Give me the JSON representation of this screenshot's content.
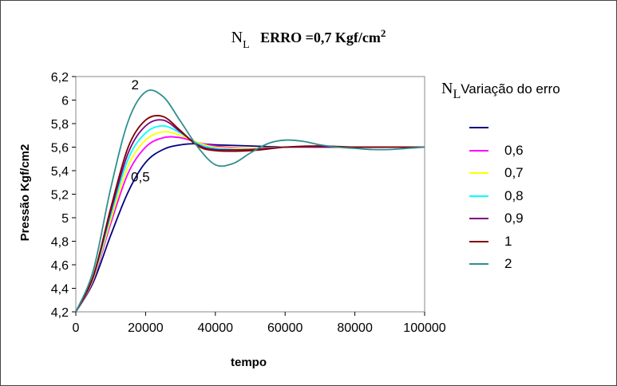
{
  "title": {
    "n": "N",
    "sub": "L",
    "text": "ERRO =0,7  Kgf/cm",
    "sup": "2"
  },
  "legend_title": {
    "n": "N",
    "sub": "L",
    "text": "Variação do erro"
  },
  "chart_data": {
    "type": "line",
    "xlabel": "tempo",
    "ylabel": "Pressão Kgf/cm2",
    "xlim": [
      0,
      100000
    ],
    "ylim": [
      4.2,
      6.2
    ],
    "xticks": [
      "0",
      "20000",
      "40000",
      "60000",
      "80000",
      "100000"
    ],
    "yticks": [
      "4,2",
      "4,4",
      "4,6",
      "4,8",
      "5",
      "5,2",
      "5,4",
      "5,6",
      "5,8",
      "6",
      "6,2"
    ],
    "grid": false,
    "legend_position": "right",
    "annotations": [
      {
        "text": "2",
        "x": 17000,
        "y": 6.09
      },
      {
        "text": "0,5",
        "x": 18500,
        "y": 5.31
      }
    ],
    "series": [
      {
        "name": "",
        "color": "#000080",
        "x": [
          0,
          5000,
          10000,
          15000,
          20000,
          25000,
          30000,
          35000,
          40000,
          50000,
          60000,
          70000,
          80000,
          90000,
          100000
        ],
        "y": [
          4.2,
          4.45,
          4.85,
          5.22,
          5.47,
          5.58,
          5.62,
          5.63,
          5.62,
          5.61,
          5.6,
          5.6,
          5.6,
          5.6,
          5.6
        ]
      },
      {
        "name": "0,6",
        "color": "#ff00ff",
        "x": [
          0,
          5000,
          10000,
          15000,
          20000,
          25000,
          30000,
          35000,
          40000,
          50000,
          60000,
          70000,
          80000,
          90000,
          100000
        ],
        "y": [
          4.2,
          4.47,
          4.95,
          5.38,
          5.6,
          5.68,
          5.68,
          5.64,
          5.61,
          5.59,
          5.6,
          5.6,
          5.6,
          5.6,
          5.6
        ]
      },
      {
        "name": "0,7",
        "color": "#ffff00",
        "x": [
          0,
          5000,
          10000,
          15000,
          20000,
          25000,
          30000,
          35000,
          40000,
          50000,
          60000,
          70000,
          80000,
          90000,
          100000
        ],
        "y": [
          4.2,
          4.48,
          4.98,
          5.44,
          5.66,
          5.73,
          5.7,
          5.64,
          5.6,
          5.59,
          5.6,
          5.6,
          5.6,
          5.6,
          5.6
        ]
      },
      {
        "name": "0,8",
        "color": "#00ffff",
        "x": [
          0,
          5000,
          10000,
          15000,
          20000,
          25000,
          30000,
          35000,
          40000,
          50000,
          60000,
          70000,
          80000,
          90000,
          100000
        ],
        "y": [
          4.2,
          4.49,
          5.02,
          5.5,
          5.72,
          5.78,
          5.72,
          5.63,
          5.59,
          5.58,
          5.6,
          5.6,
          5.6,
          5.6,
          5.6
        ]
      },
      {
        "name": "0,9",
        "color": "#800080",
        "x": [
          0,
          5000,
          10000,
          15000,
          20000,
          25000,
          30000,
          35000,
          40000,
          50000,
          60000,
          70000,
          80000,
          90000,
          100000
        ],
        "y": [
          4.2,
          4.5,
          5.05,
          5.55,
          5.78,
          5.83,
          5.73,
          5.62,
          5.58,
          5.58,
          5.6,
          5.6,
          5.6,
          5.6,
          5.6
        ]
      },
      {
        "name": "1",
        "color": "#800000",
        "x": [
          0,
          5000,
          10000,
          15000,
          20000,
          25000,
          30000,
          35000,
          40000,
          50000,
          60000,
          70000,
          80000,
          90000,
          100000
        ],
        "y": [
          4.2,
          4.5,
          5.08,
          5.6,
          5.83,
          5.86,
          5.74,
          5.61,
          5.57,
          5.57,
          5.6,
          5.61,
          5.6,
          5.6,
          5.6
        ]
      },
      {
        "name": "2",
        "color": "#2f8f8f",
        "x": [
          0,
          5000,
          10000,
          15000,
          20000,
          25000,
          30000,
          35000,
          40000,
          45000,
          50000,
          55000,
          60000,
          65000,
          70000,
          75000,
          80000,
          85000,
          90000,
          95000,
          100000
        ],
        "y": [
          4.2,
          4.55,
          5.25,
          5.82,
          6.07,
          6.03,
          5.82,
          5.6,
          5.45,
          5.46,
          5.55,
          5.63,
          5.66,
          5.65,
          5.62,
          5.6,
          5.59,
          5.58,
          5.58,
          5.59,
          5.6
        ]
      }
    ]
  }
}
